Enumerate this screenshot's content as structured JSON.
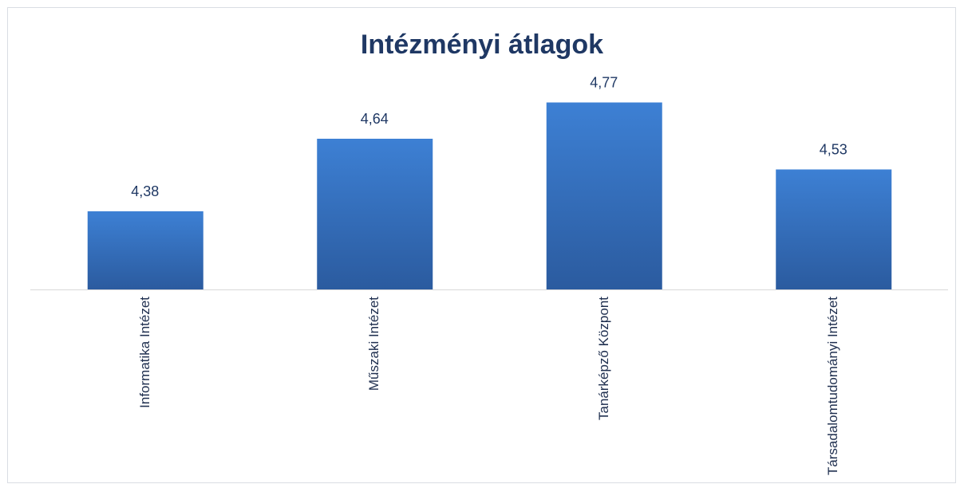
{
  "chart_data": {
    "type": "bar",
    "title": "Intézményi átlagok",
    "categories": [
      "Informatika Intézet",
      "Műszaki Intézet",
      "Tanárképző Központ",
      "Társadalomtudományi Intézet"
    ],
    "values": [
      4.38,
      4.64,
      4.77,
      4.53
    ],
    "value_labels": [
      "4,38",
      "4,64",
      "4,77",
      "4,53"
    ],
    "color": "#3a78c9",
    "ylim": [
      4.1,
      5.0
    ]
  }
}
